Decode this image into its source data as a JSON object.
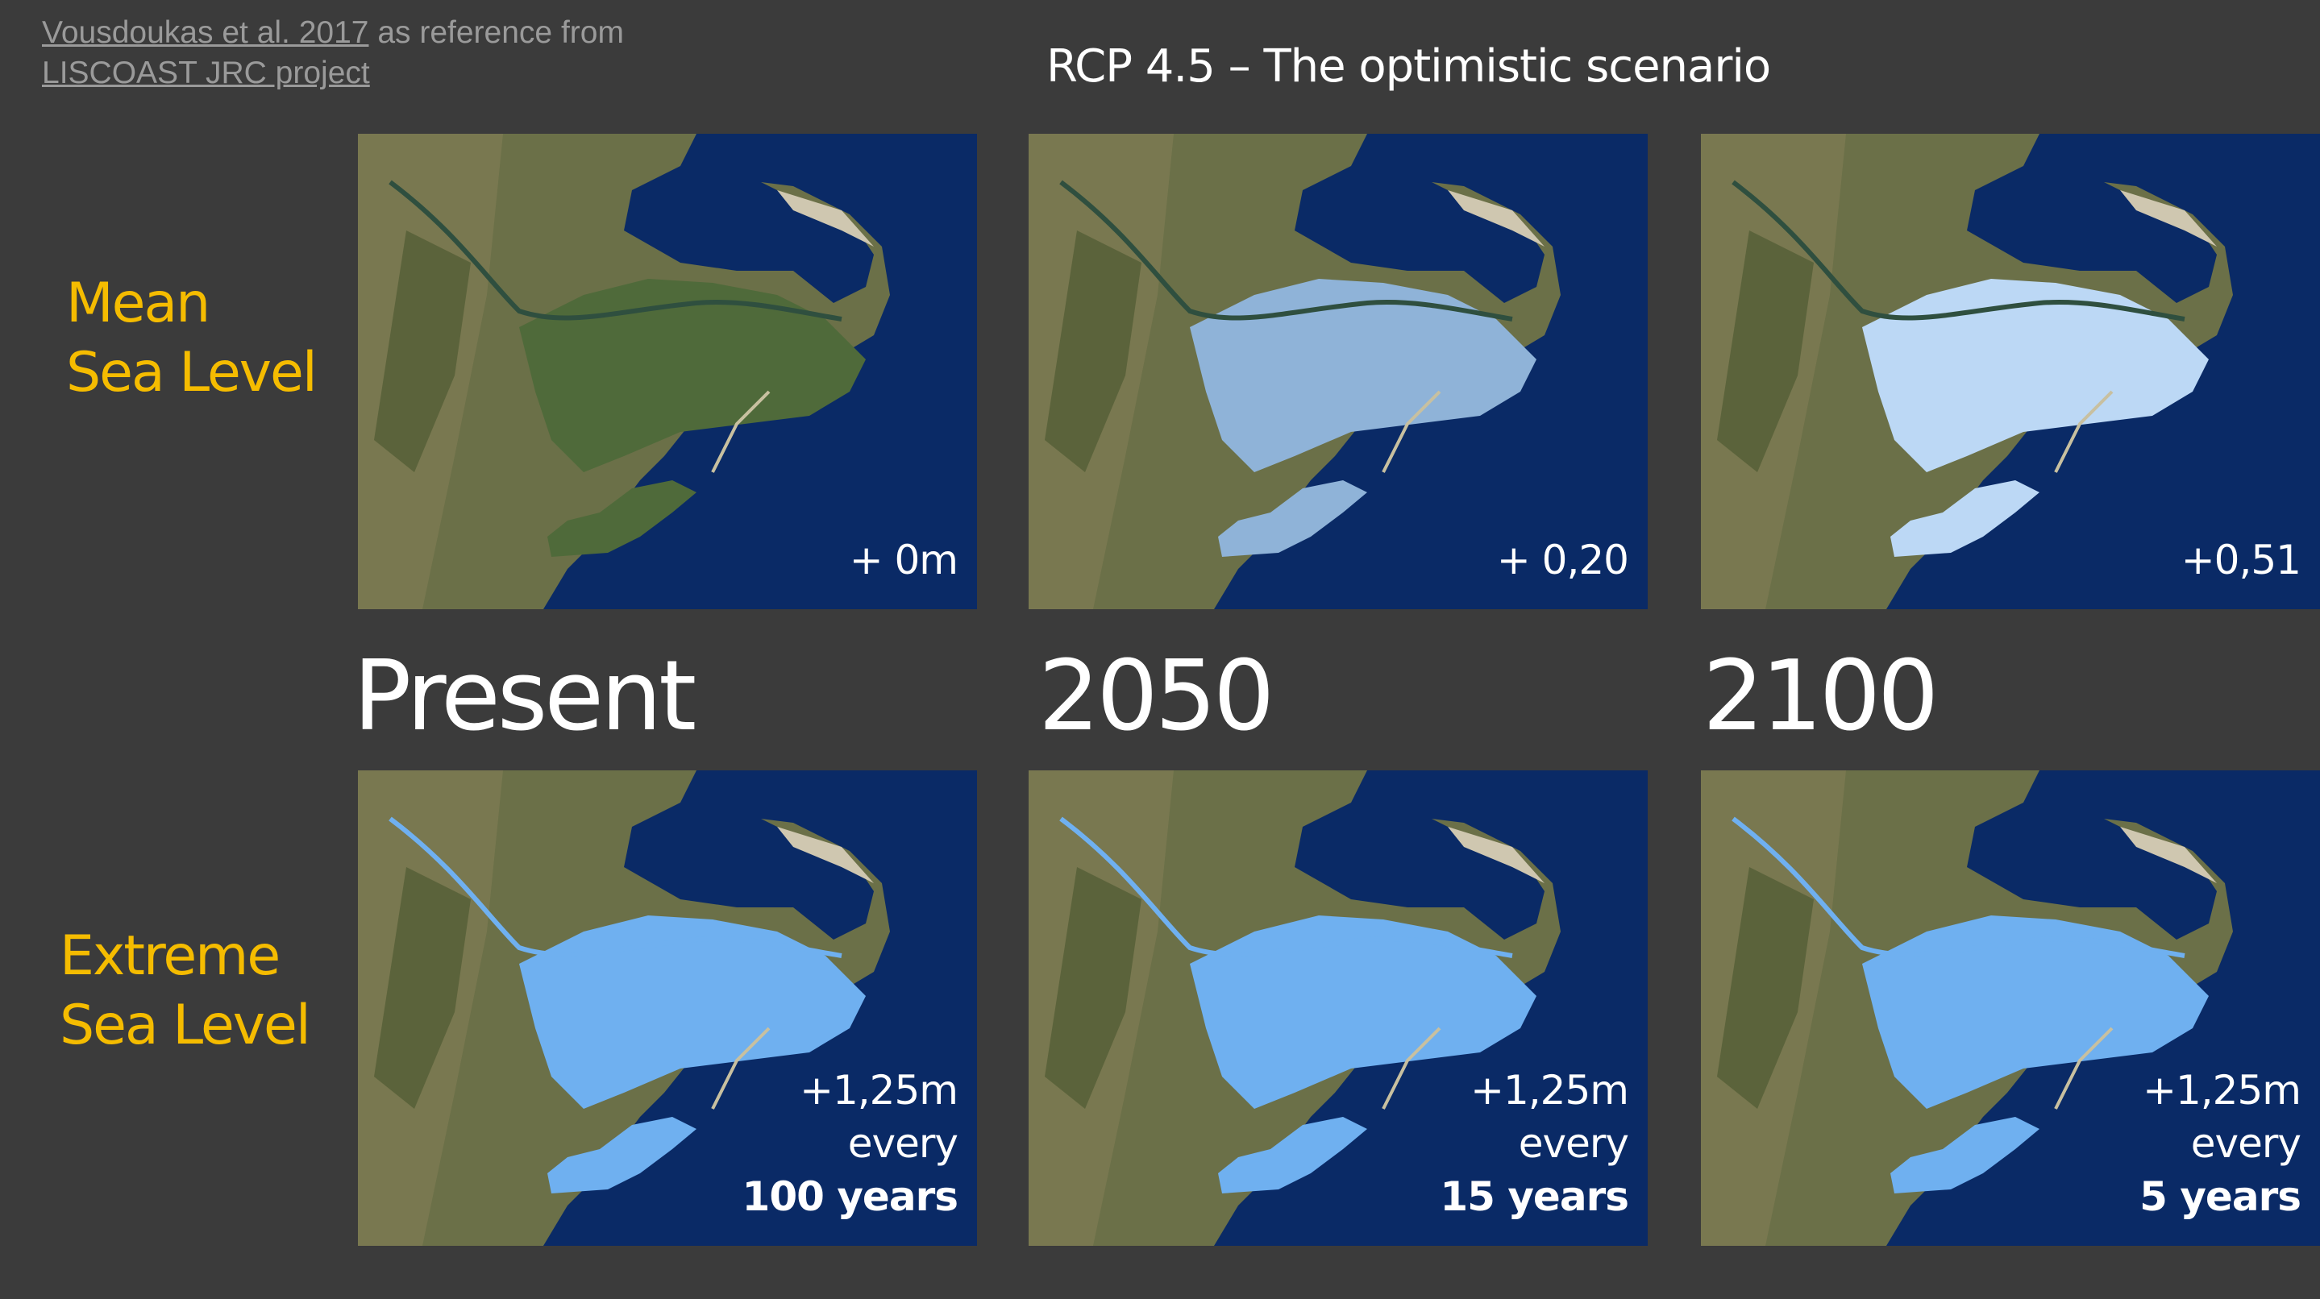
{
  "reference": {
    "link1": "Vousdoukas et al. 2017",
    "middle": " as reference from",
    "link2": "LISCOAST JRC project"
  },
  "title": "RCP 4.5 – The optimistic scenario",
  "row_labels": {
    "mean": [
      "Mean",
      "Sea Level"
    ],
    "extreme": [
      "Extreme",
      "Sea Level"
    ]
  },
  "columns": [
    "Present",
    "2050",
    "2100"
  ],
  "panels": {
    "mean": [
      {
        "label": "+ 0m",
        "flood": 0.0
      },
      {
        "label": "+ 0,20",
        "flood": 0.2
      },
      {
        "label": "+0,51",
        "flood": 0.51
      }
    ],
    "extreme": [
      {
        "line1": "+1,25m",
        "line2": "every",
        "line3": "100 years",
        "flood": 1.25
      },
      {
        "line1": "+1,25m",
        "line2": "every",
        "line3": "15 years",
        "flood": 1.25
      },
      {
        "line1": "+1,25m",
        "line2": "every",
        "line3": "5 years",
        "flood": 1.25
      }
    ]
  },
  "colors": {
    "sea": "#0a2a66",
    "land": "#5a6a3a",
    "flood_light": "#bcd8f5",
    "flood_extreme": "#6fb0f0",
    "accent": "#f5bc00"
  }
}
